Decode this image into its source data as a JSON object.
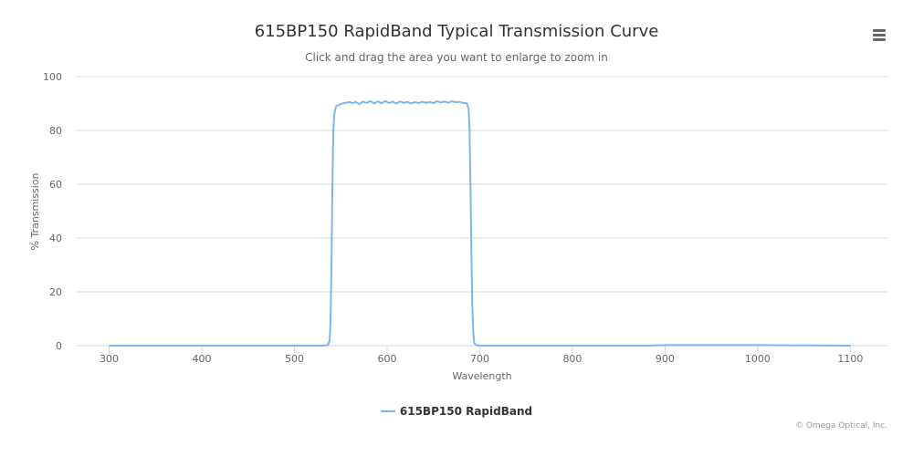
{
  "chart_data": {
    "type": "line",
    "title": "615BP150 RapidBand Typical Transmission Curve",
    "subtitle": "Click and drag the area you want to enlarge to zoom in",
    "xlabel": "Wavelength",
    "ylabel": "% Transmission",
    "xlim": [
      265,
      1140
    ],
    "ylim": [
      0,
      100
    ],
    "xticks": [
      300,
      400,
      500,
      600,
      700,
      800,
      900,
      1000,
      1100
    ],
    "yticks": [
      0,
      20,
      40,
      60,
      80,
      100
    ],
    "grid": "horizontal",
    "legend_position": "bottom-center",
    "series": [
      {
        "name": "615BP150 RapidBand",
        "color": "#7cb5ec",
        "points": [
          [
            300,
            0
          ],
          [
            400,
            0
          ],
          [
            500,
            0
          ],
          [
            530,
            0
          ],
          [
            536,
            0.2
          ],
          [
            538,
            2
          ],
          [
            539,
            10
          ],
          [
            540,
            30
          ],
          [
            541,
            60
          ],
          [
            542,
            80
          ],
          [
            543,
            86
          ],
          [
            545,
            89
          ],
          [
            550,
            89.8
          ],
          [
            555,
            90.3
          ],
          [
            560,
            90.5
          ],
          [
            563,
            90.1
          ],
          [
            566,
            90.6
          ],
          [
            570,
            89.8
          ],
          [
            574,
            90.7
          ],
          [
            578,
            90.2
          ],
          [
            582,
            90.9
          ],
          [
            586,
            90.0
          ],
          [
            590,
            90.8
          ],
          [
            594,
            90.1
          ],
          [
            598,
            90.9
          ],
          [
            602,
            90.2
          ],
          [
            606,
            90.7
          ],
          [
            610,
            90.0
          ],
          [
            614,
            90.8
          ],
          [
            618,
            90.2
          ],
          [
            622,
            90.6
          ],
          [
            626,
            90.0
          ],
          [
            630,
            90.5
          ],
          [
            634,
            90.2
          ],
          [
            638,
            90.6
          ],
          [
            642,
            90.3
          ],
          [
            646,
            90.5
          ],
          [
            650,
            90.2
          ],
          [
            654,
            90.8
          ],
          [
            658,
            90.4
          ],
          [
            662,
            90.7
          ],
          [
            666,
            90.3
          ],
          [
            670,
            90.8
          ],
          [
            674,
            90.5
          ],
          [
            678,
            90.6
          ],
          [
            682,
            90.2
          ],
          [
            686,
            90.1
          ],
          [
            688,
            88
          ],
          [
            689,
            80
          ],
          [
            690,
            60
          ],
          [
            691,
            35
          ],
          [
            692,
            15
          ],
          [
            693,
            5
          ],
          [
            694,
            1
          ],
          [
            696,
            0.2
          ],
          [
            700,
            0
          ],
          [
            800,
            0
          ],
          [
            880,
            0
          ],
          [
            900,
            0.2
          ],
          [
            1000,
            0.2
          ],
          [
            1100,
            0
          ]
        ]
      }
    ]
  },
  "menu": {
    "icon": "hamburger-icon"
  },
  "legend": {
    "label": "615BP150 RapidBand",
    "color": "#7cb5ec"
  },
  "credits": "© Omega Optical, Inc."
}
